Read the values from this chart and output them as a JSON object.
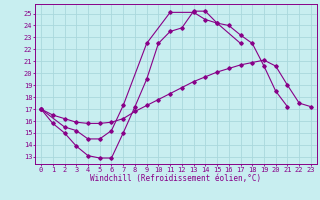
{
  "title": "",
  "xlabel": "Windchill (Refroidissement éolien,°C)",
  "ylabel": "",
  "bg_color": "#c8eef0",
  "grid_color": "#aad8dc",
  "line_color": "#880088",
  "spine_color": "#880088",
  "x_ticks": [
    0,
    1,
    2,
    3,
    4,
    5,
    6,
    7,
    8,
    9,
    10,
    11,
    12,
    13,
    14,
    15,
    16,
    17,
    18,
    19,
    20,
    21,
    22,
    23
  ],
  "y_ticks": [
    13,
    14,
    15,
    16,
    17,
    18,
    19,
    20,
    21,
    22,
    23,
    24,
    25
  ],
  "xlim": [
    -0.5,
    23.5
  ],
  "ylim": [
    12.4,
    25.8
  ],
  "series": [
    [
      17.0,
      15.8,
      15.0,
      13.9,
      13.1,
      12.9,
      12.9,
      15.0,
      17.2,
      19.5,
      22.5,
      23.5,
      23.8,
      25.2,
      25.2,
      24.2,
      24.0,
      23.2,
      22.5,
      20.6,
      18.5,
      17.2
    ],
    [
      17.0,
      15.5,
      15.2,
      14.5,
      14.5,
      15.2,
      17.3,
      22.5,
      25.1,
      25.1,
      24.5,
      24.2,
      22.5
    ],
    [
      17.0,
      16.5,
      16.2,
      15.9,
      15.8,
      15.8,
      15.9,
      16.2,
      16.8,
      17.3,
      17.8,
      18.3,
      18.8,
      19.3,
      19.7,
      20.1,
      20.4,
      20.7,
      20.9,
      21.1,
      20.6,
      19.0,
      17.5,
      17.2
    ]
  ],
  "series_x": [
    [
      0,
      1,
      2,
      3,
      4,
      5,
      6,
      7,
      8,
      9,
      10,
      11,
      12,
      13,
      14,
      15,
      16,
      17,
      18,
      19,
      20,
      21
    ],
    [
      0,
      2,
      3,
      4,
      5,
      6,
      7,
      9,
      11,
      13,
      14,
      15,
      17
    ],
    [
      0,
      1,
      2,
      3,
      4,
      5,
      6,
      7,
      8,
      9,
      10,
      11,
      12,
      13,
      14,
      15,
      16,
      17,
      18,
      19,
      20,
      21,
      22,
      23
    ]
  ],
  "tick_fontsize": 5.0,
  "xlabel_fontsize": 5.5
}
